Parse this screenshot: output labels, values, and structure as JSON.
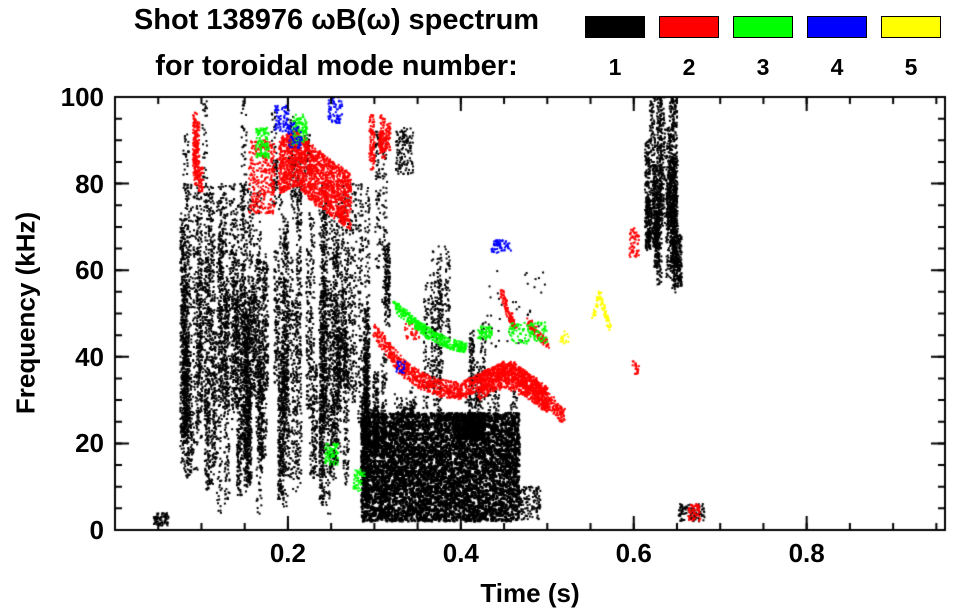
{
  "header": {
    "title_line1": "Shot 138976 ωB(ω) spectrum",
    "title_line2": "for toroidal mode number:"
  },
  "legend": {
    "entries": [
      {
        "label": "1",
        "color": "#000000"
      },
      {
        "label": "2",
        "color": "#ff0000"
      },
      {
        "label": "3",
        "color": "#00ff00"
      },
      {
        "label": "4",
        "color": "#0000ff"
      },
      {
        "label": "5",
        "color": "#ffff00"
      }
    ]
  },
  "chart_data": {
    "type": "scatter",
    "title": "Shot 138976 ωB(ω) spectrum for toroidal mode number: 1-5",
    "xlabel": "Time (s)",
    "ylabel": "Frequency (kHz)",
    "xlim": [
      0,
      0.96
    ],
    "ylim": [
      0,
      100
    ],
    "xticks": [
      0.2,
      0.4,
      0.6,
      0.8
    ],
    "yticks": [
      0,
      20,
      40,
      60,
      80,
      100
    ],
    "x_minor_step": 0.05,
    "y_minor_step": 5,
    "grid": false,
    "legend_position": "top-right",
    "series": [
      {
        "name": "1",
        "color": "#000000",
        "clusters": [
          {
            "type": "columns",
            "t": [
              0.075,
              0.295
            ],
            "f": [
              3,
              80
            ],
            "cols": 85,
            "pts": 120
          },
          {
            "type": "columns",
            "t": [
              0.08,
              0.303
            ],
            "f": [
              70,
              100
            ],
            "cols": 10,
            "pts": 35
          },
          {
            "type": "columns",
            "t": [
              0.3,
              0.335
            ],
            "f": [
              40,
              92
            ],
            "cols": 4,
            "pts": 80
          },
          {
            "type": "blob",
            "t": [
              0.285,
              0.468
            ],
            "f": [
              2,
              27
            ],
            "n": 5200
          },
          {
            "type": "columns",
            "t": [
              0.287,
              0.468
            ],
            "f": [
              20,
              33
            ],
            "cols": 26,
            "pts": 18
          },
          {
            "type": "spot",
            "t": [
              0.392,
              0.428
            ],
            "f": [
              21,
              27
            ],
            "n": 600
          },
          {
            "type": "columns",
            "t": [
              0.288,
              0.312
            ],
            "f": [
              5,
              46
            ],
            "cols": 7,
            "pts": 110
          },
          {
            "type": "columns",
            "t": [
              0.352,
              0.39
            ],
            "f": [
              28,
              66
            ],
            "cols": 7,
            "pts": 60
          },
          {
            "type": "columns",
            "t": [
              0.405,
              0.428
            ],
            "f": [
              28,
              48
            ],
            "cols": 4,
            "pts": 45
          },
          {
            "type": "spot",
            "t": [
              0.325,
              0.345
            ],
            "f": [
              82,
              93
            ],
            "n": 130
          },
          {
            "type": "columns",
            "t": [
              0.615,
              0.655
            ],
            "f": [
              53,
              100
            ],
            "cols": 16,
            "pts": 150
          },
          {
            "type": "spot",
            "t": [
              0.045,
              0.062
            ],
            "f": [
              1,
              4
            ],
            "n": 70
          },
          {
            "type": "spot",
            "t": [
              0.652,
              0.682
            ],
            "f": [
              2,
              6
            ],
            "n": 110
          },
          {
            "type": "spot",
            "t": [
              0.468,
              0.492
            ],
            "f": [
              2,
              10
            ],
            "n": 120
          },
          {
            "type": "spot",
            "t": [
              0.43,
              0.5
            ],
            "f": [
              42,
              60
            ],
            "n": 40
          }
        ]
      },
      {
        "name": "2",
        "color": "#ff0000",
        "clusters": [
          {
            "type": "columns",
            "t": [
              0.086,
              0.103
            ],
            "f": [
              78,
              97
            ],
            "cols": 5,
            "pts": 55
          },
          {
            "type": "spot",
            "t": [
              0.155,
              0.185
            ],
            "f": [
              73,
              90
            ],
            "n": 320
          },
          {
            "type": "path",
            "pts": [
              [
                0.19,
                84
              ],
              [
                0.21,
                86
              ],
              [
                0.23,
                82
              ],
              [
                0.25,
                79
              ],
              [
                0.272,
                76
              ]
            ],
            "width": 13,
            "n": 1700
          },
          {
            "type": "columns",
            "t": [
              0.295,
              0.317
            ],
            "f": [
              82,
              96
            ],
            "cols": 5,
            "pts": 55
          },
          {
            "type": "path",
            "pts": [
              [
                0.3,
                46
              ],
              [
                0.315,
                42
              ],
              [
                0.33,
                38
              ],
              [
                0.35,
                35
              ],
              [
                0.37,
                33
              ],
              [
                0.4,
                32
              ],
              [
                0.42,
                34
              ],
              [
                0.44,
                36
              ],
              [
                0.46,
                37
              ],
              [
                0.475,
                35
              ],
              [
                0.49,
                32
              ],
              [
                0.505,
                29
              ],
              [
                0.52,
                26
              ]
            ],
            "width": 4,
            "n": 1300
          },
          {
            "type": "path",
            "pts": [
              [
                0.42,
                33
              ],
              [
                0.45,
                36
              ],
              [
                0.48,
                33
              ],
              [
                0.5,
                30
              ]
            ],
            "width": 6,
            "n": 800
          },
          {
            "type": "path",
            "pts": [
              [
                0.447,
                55
              ],
              [
                0.455,
                50
              ],
              [
                0.463,
                47
              ]
            ],
            "width": 2,
            "n": 110
          },
          {
            "type": "path",
            "pts": [
              [
                0.478,
                48
              ],
              [
                0.49,
                45
              ],
              [
                0.502,
                43
              ]
            ],
            "width": 2,
            "n": 90
          },
          {
            "type": "spot",
            "t": [
              0.335,
              0.352
            ],
            "f": [
              44,
              48
            ],
            "n": 40
          },
          {
            "type": "spot",
            "t": [
              0.595,
              0.606
            ],
            "f": [
              63,
              70
            ],
            "n": 55
          },
          {
            "type": "spot",
            "t": [
              0.598,
              0.606
            ],
            "f": [
              36,
              39
            ],
            "n": 20
          },
          {
            "type": "spot",
            "t": [
              0.663,
              0.677
            ],
            "f": [
              2,
              6
            ],
            "n": 55
          }
        ]
      },
      {
        "name": "3",
        "color": "#00ff00",
        "clusters": [
          {
            "type": "spot",
            "t": [
              0.163,
              0.178
            ],
            "f": [
              86,
              93
            ],
            "n": 110
          },
          {
            "type": "spot",
            "t": [
              0.205,
              0.222
            ],
            "f": [
              89,
              96
            ],
            "n": 110
          },
          {
            "type": "path",
            "pts": [
              [
                0.323,
                52
              ],
              [
                0.345,
                48
              ],
              [
                0.366,
                45
              ],
              [
                0.386,
                43
              ],
              [
                0.406,
                42
              ]
            ],
            "width": 2.5,
            "n": 380
          },
          {
            "type": "spot",
            "t": [
              0.418,
              0.436
            ],
            "f": [
              44,
              47
            ],
            "n": 55
          },
          {
            "type": "spot",
            "t": [
              0.455,
              0.5
            ],
            "f": [
              43,
              48
            ],
            "n": 110
          },
          {
            "type": "spot",
            "t": [
              0.243,
              0.258
            ],
            "f": [
              15,
              20
            ],
            "n": 70
          },
          {
            "type": "spot",
            "t": [
              0.276,
              0.289
            ],
            "f": [
              9,
              14
            ],
            "n": 45
          }
        ]
      },
      {
        "name": "4",
        "color": "#0000ff",
        "clusters": [
          {
            "type": "spot",
            "t": [
              0.185,
              0.201
            ],
            "f": [
              92,
              98
            ],
            "n": 70
          },
          {
            "type": "spot",
            "t": [
              0.2,
              0.216
            ],
            "f": [
              88,
              94
            ],
            "n": 55
          },
          {
            "type": "spot",
            "t": [
              0.247,
              0.263
            ],
            "f": [
              94,
              100
            ],
            "n": 70
          },
          {
            "type": "spot",
            "t": [
              0.435,
              0.458
            ],
            "f": [
              64,
              67
            ],
            "n": 60
          },
          {
            "type": "spot",
            "t": [
              0.325,
              0.336
            ],
            "f": [
              36,
              39
            ],
            "n": 22
          }
        ]
      },
      {
        "name": "5",
        "color": "#ffff00",
        "clusters": [
          {
            "type": "path",
            "pts": [
              [
                0.553,
                48
              ],
              [
                0.56,
                55
              ],
              [
                0.567,
                50
              ],
              [
                0.572,
                47
              ]
            ],
            "width": 1.6,
            "n": 80
          },
          {
            "type": "spot",
            "t": [
              0.515,
              0.525
            ],
            "f": [
              43,
              46
            ],
            "n": 18
          }
        ]
      }
    ]
  }
}
